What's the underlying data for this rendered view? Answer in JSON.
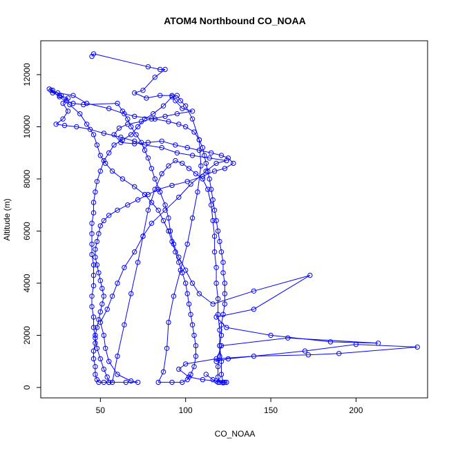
{
  "chart_data": {
    "type": "scatter",
    "title": "ATOM4 Northbound CO_NOAA",
    "xlabel": "CO_NOAA",
    "ylabel": "Altitude (m)",
    "xlim": [
      15,
      242
    ],
    "ylim": [
      -400,
      13300
    ],
    "xticks": [
      50,
      100,
      150,
      200
    ],
    "yticks": [
      0,
      2000,
      4000,
      6000,
      8000,
      10000,
      12000
    ],
    "grid": false,
    "legend": "none",
    "series": [
      {
        "style": "lines+open-circles",
        "color": "#0000ff",
        "points": [
          [
            45,
            12700
          ],
          [
            46,
            12800
          ],
          [
            78,
            12300
          ],
          [
            85,
            12200
          ],
          [
            88,
            12200
          ],
          [
            82,
            11900
          ],
          [
            75,
            11400
          ],
          [
            70,
            11300
          ],
          [
            77,
            11100
          ],
          [
            85,
            11200
          ],
          [
            92,
            11200
          ],
          [
            94,
            11000
          ],
          [
            98,
            10700
          ],
          [
            104,
            10600
          ],
          [
            95,
            10500
          ],
          [
            88,
            10400
          ],
          [
            80,
            10300
          ],
          [
            74,
            10200
          ],
          [
            66,
            10100
          ],
          [
            61,
            9950
          ],
          [
            58,
            9700
          ],
          [
            62,
            9400
          ],
          [
            70,
            9350
          ],
          [
            78,
            9400
          ],
          [
            86,
            9450
          ],
          [
            94,
            9300
          ],
          [
            101,
            9200
          ],
          [
            108,
            9100
          ],
          [
            115,
            9000
          ],
          [
            121,
            8900
          ],
          [
            125,
            8800
          ],
          [
            128,
            8600
          ],
          [
            123,
            8400
          ],
          [
            117,
            8300
          ],
          [
            110,
            8100
          ],
          [
            101,
            7900
          ],
          [
            92,
            7750
          ],
          [
            84,
            7600
          ],
          [
            78,
            7400
          ],
          [
            72,
            7200
          ],
          [
            66,
            7000
          ],
          [
            60,
            6800
          ],
          [
            55,
            6600
          ],
          [
            52,
            6400
          ],
          [
            50,
            6200
          ],
          [
            49,
            5900
          ],
          [
            48,
            5600
          ],
          [
            47,
            5300
          ],
          [
            47,
            5000
          ],
          [
            48,
            4700
          ],
          [
            49,
            4400
          ],
          [
            50,
            4100
          ],
          [
            51,
            3800
          ],
          [
            52,
            3500
          ],
          [
            51,
            3200
          ],
          [
            50,
            2900
          ],
          [
            49,
            2600
          ],
          [
            48,
            2300
          ],
          [
            47,
            2000
          ],
          [
            47,
            1700
          ],
          [
            46,
            1400
          ],
          [
            46,
            1100
          ],
          [
            47,
            800
          ],
          [
            47,
            500
          ],
          [
            48,
            300
          ],
          [
            49,
            200
          ],
          [
            52,
            200
          ],
          [
            55,
            200
          ],
          [
            65,
            200
          ],
          [
            72,
            200
          ],
          [
            68,
            250
          ],
          [
            60,
            500
          ],
          [
            55,
            1000
          ],
          [
            53,
            1500
          ],
          [
            52,
            2000
          ],
          [
            50,
            2500
          ],
          [
            54,
            3000
          ],
          [
            57,
            3500
          ],
          [
            60,
            4000
          ],
          [
            64,
            4600
          ],
          [
            70,
            5200
          ],
          [
            75,
            5800
          ],
          [
            80,
            6300
          ],
          [
            88,
            6800
          ],
          [
            96,
            7300
          ],
          [
            103,
            7800
          ],
          [
            112,
            8300
          ],
          [
            118,
            8600
          ],
          [
            124,
            8700
          ],
          [
            114,
            8800
          ],
          [
            104,
            8900
          ],
          [
            95,
            9000
          ],
          [
            86,
            9200
          ],
          [
            76,
            9300
          ],
          [
            70,
            9450
          ],
          [
            62,
            9600
          ],
          [
            52,
            9750
          ],
          [
            44,
            9900
          ],
          [
            36,
            10000
          ],
          [
            29,
            10050
          ],
          [
            24,
            10100
          ],
          [
            28,
            10300
          ],
          [
            31,
            10600
          ],
          [
            28,
            10900
          ],
          [
            31,
            11100
          ],
          [
            26,
            11200
          ],
          [
            22,
            11300
          ],
          [
            21,
            11400
          ],
          [
            25,
            11300
          ],
          [
            34,
            11200
          ],
          [
            42,
            10900
          ],
          [
            55,
            10700
          ],
          [
            64,
            10500
          ],
          [
            70,
            10400
          ],
          [
            82,
            10300
          ],
          [
            90,
            10200
          ],
          [
            96,
            10100
          ],
          [
            100,
            10000
          ],
          [
            105,
            9800
          ],
          [
            108,
            9500
          ],
          [
            110,
            9200
          ],
          [
            111,
            8900
          ],
          [
            112,
            8600
          ],
          [
            113,
            8300
          ],
          [
            114,
            8000
          ],
          [
            115,
            7600
          ],
          [
            116,
            7200
          ],
          [
            117,
            6800
          ],
          [
            118,
            6400
          ],
          [
            119,
            6000
          ],
          [
            120,
            5600
          ],
          [
            121,
            5200
          ],
          [
            122,
            4800
          ],
          [
            122,
            4400
          ],
          [
            123,
            4000
          ],
          [
            123,
            3600
          ],
          [
            123,
            3200
          ],
          [
            122,
            2800
          ],
          [
            121,
            2400
          ],
          [
            121,
            2000
          ],
          [
            120,
            1600
          ],
          [
            120,
            1200
          ],
          [
            119,
            800
          ],
          [
            119,
            400
          ],
          [
            120,
            200
          ],
          [
            122,
            180
          ],
          [
            124,
            200
          ],
          [
            118,
            250
          ],
          [
            110,
            300
          ],
          [
            102,
            400
          ],
          [
            96,
            700
          ],
          [
            100,
            900
          ],
          [
            118,
            1100
          ],
          [
            140,
            1200
          ],
          [
            172,
            1250
          ],
          [
            190,
            1300
          ],
          [
            236,
            1550
          ],
          [
            200,
            1650
          ],
          [
            170,
            1400
          ],
          [
            125,
            1100
          ],
          [
            118,
            1000
          ],
          [
            121,
            1600
          ],
          [
            160,
            1900
          ],
          [
            213,
            1700
          ],
          [
            185,
            1750
          ],
          [
            150,
            2000
          ],
          [
            124,
            2300
          ],
          [
            118,
            2700
          ],
          [
            140,
            3000
          ],
          [
            173,
            4300
          ],
          [
            140,
            3700
          ],
          [
            116,
            3200
          ],
          [
            108,
            3600
          ],
          [
            104,
            4000
          ],
          [
            100,
            4500
          ],
          [
            96,
            5000
          ],
          [
            93,
            5500
          ],
          [
            91,
            6000
          ],
          [
            90,
            6500
          ],
          [
            88,
            7000
          ],
          [
            85,
            7500
          ],
          [
            82,
            8000
          ],
          [
            80,
            8400
          ],
          [
            78,
            8800
          ],
          [
            76,
            9100
          ],
          [
            74,
            9400
          ],
          [
            71,
            9700
          ],
          [
            68,
            10000
          ],
          [
            66,
            10300
          ],
          [
            63,
            10600
          ],
          [
            60,
            10900
          ],
          [
            40,
            10850
          ],
          [
            34,
            10900
          ],
          [
            30,
            11000
          ],
          [
            27,
            11200
          ],
          [
            22,
            11400
          ],
          [
            20,
            11450
          ],
          [
            26,
            11150
          ],
          [
            32,
            10850
          ],
          [
            38,
            10500
          ],
          [
            42,
            10100
          ],
          [
            46,
            9700
          ],
          [
            48,
            9300
          ],
          [
            50,
            8900
          ],
          [
            53,
            8600
          ],
          [
            57,
            8300
          ],
          [
            63,
            8000
          ],
          [
            70,
            7700
          ],
          [
            76,
            7400
          ],
          [
            80,
            7100
          ],
          [
            84,
            6800
          ],
          [
            87,
            6400
          ],
          [
            90,
            6000
          ],
          [
            92,
            5600
          ],
          [
            94,
            5200
          ],
          [
            96,
            4800
          ],
          [
            98,
            4400
          ],
          [
            100,
            4000
          ],
          [
            101,
            3600
          ],
          [
            102,
            3200
          ],
          [
            103,
            2800
          ],
          [
            104,
            2400
          ],
          [
            105,
            2000
          ],
          [
            106,
            1600
          ],
          [
            106,
            1200
          ],
          [
            105,
            800
          ],
          [
            103,
            500
          ],
          [
            101,
            300
          ],
          [
            98,
            200
          ],
          [
            92,
            200
          ],
          [
            84,
            200
          ],
          [
            87,
            600
          ],
          [
            89,
            1500
          ],
          [
            90,
            2500
          ],
          [
            93,
            3500
          ],
          [
            97,
            4500
          ],
          [
            101,
            5500
          ],
          [
            104,
            6500
          ],
          [
            107,
            7500
          ],
          [
            109,
            8500
          ],
          [
            108,
            9500
          ],
          [
            104,
            10300
          ],
          [
            100,
            10800
          ],
          [
            97,
            11000
          ],
          [
            95,
            11200
          ],
          [
            92,
            11150
          ],
          [
            87,
            10800
          ],
          [
            81,
            10500
          ],
          [
            76,
            10300
          ],
          [
            72,
            10000
          ],
          [
            68,
            9700
          ],
          [
            63,
            9500
          ],
          [
            58,
            9300
          ],
          [
            55,
            9000
          ],
          [
            52,
            8700
          ],
          [
            50,
            8300
          ],
          [
            48,
            7900
          ],
          [
            47,
            7500
          ],
          [
            46,
            7100
          ],
          [
            46,
            6700
          ],
          [
            45,
            6300
          ],
          [
            45,
            5900
          ],
          [
            45,
            5500
          ],
          [
            45,
            5100
          ],
          [
            46,
            4700
          ],
          [
            46,
            4300
          ],
          [
            46,
            3900
          ],
          [
            45,
            3500
          ],
          [
            45,
            3100
          ],
          [
            46,
            2700
          ],
          [
            46,
            2300
          ],
          [
            47,
            1900
          ],
          [
            48,
            1500
          ],
          [
            50,
            1100
          ],
          [
            52,
            700
          ],
          [
            54,
            400
          ],
          [
            55,
            200
          ],
          [
            57,
            200
          ],
          [
            60,
            1200
          ],
          [
            64,
            2400
          ],
          [
            68,
            3600
          ],
          [
            72,
            4800
          ],
          [
            75,
            5800
          ],
          [
            78,
            6800
          ],
          [
            82,
            7600
          ],
          [
            86,
            8200
          ],
          [
            90,
            8500
          ],
          [
            94,
            8700
          ],
          [
            98,
            8600
          ],
          [
            102,
            8400
          ],
          [
            106,
            8200
          ],
          [
            110,
            8000
          ],
          [
            113,
            7600
          ],
          [
            115,
            7000
          ],
          [
            116,
            6400
          ],
          [
            117,
            5800
          ],
          [
            117,
            5200
          ],
          [
            118,
            4600
          ],
          [
            118,
            4000
          ],
          [
            119,
            3400
          ],
          [
            119,
            2800
          ],
          [
            120,
            2200
          ],
          [
            120,
            1600
          ],
          [
            121,
            1000
          ],
          [
            121,
            500
          ],
          [
            122,
            200
          ],
          [
            123,
            200
          ],
          [
            119,
            200
          ],
          [
            116,
            300
          ],
          [
            112,
            500
          ]
        ]
      }
    ]
  }
}
